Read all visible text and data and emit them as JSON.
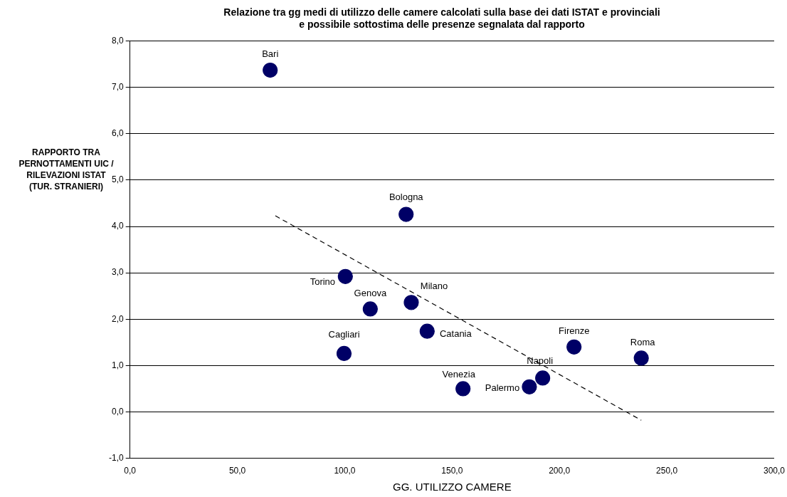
{
  "chart_data": {
    "type": "scatter",
    "title": "Relazione tra gg medi di utilizzo delle camere calcolati sulla base dei dati ISTAT e provinciali\ne possibile sottostima delle presenze segnalata dal rapporto",
    "xlabel": "GG. UTILIZZO CAMERE",
    "ylabel": "RAPPORTO TRA\nPERNOTTAMENTI UIC /\nRILEVAZIONI ISTAT\n(TUR. STRANIERI)",
    "xlim": [
      0,
      300
    ],
    "xticks": [
      {
        "value": 0,
        "label": "0,0"
      },
      {
        "value": 50,
        "label": "50,0"
      },
      {
        "value": 100,
        "label": "100,0"
      },
      {
        "value": 150,
        "label": "150,0"
      },
      {
        "value": 200,
        "label": "200,0"
      },
      {
        "value": 250,
        "label": "250,0"
      },
      {
        "value": 300,
        "label": "300,0"
      }
    ],
    "ylim": [
      -1,
      8
    ],
    "yticks": [
      {
        "value": -1,
        "label": "-1,0"
      },
      {
        "value": 0,
        "label": "0,0"
      },
      {
        "value": 1,
        "label": "1,0"
      },
      {
        "value": 2,
        "label": "2,0"
      },
      {
        "value": 3,
        "label": "3,0"
      },
      {
        "value": 4,
        "label": "4,0"
      },
      {
        "value": 5,
        "label": "5,0"
      },
      {
        "value": 6,
        "label": "6,0"
      },
      {
        "value": 7,
        "label": "7,0"
      },
      {
        "value": 8,
        "label": "8,0"
      }
    ],
    "grid": "y",
    "legend": false,
    "series": [
      {
        "color": "#000066",
        "marker": "circle",
        "x": [
          65.3,
          128.6,
          100.3,
          111.9,
          131,
          138.4,
          99.7,
          155.1,
          186,
          192.2,
          206.8,
          238.1
        ],
        "values": [
          7.37,
          4.26,
          2.92,
          2.22,
          2.36,
          1.74,
          1.26,
          0.5,
          0.54,
          0.73,
          1.4,
          1.16
        ]
      },
      {
        "type": "line",
        "color": "#000000",
        "line_style": "dashed",
        "marker": "none",
        "x": [
          67.7,
          238.1
        ],
        "values": [
          4.23,
          -0.18
        ]
      }
    ],
    "annotations": [
      {
        "text": "Bari",
        "x": 65.3,
        "y": 7.37
      },
      {
        "text": "Bologna",
        "x": 128.6,
        "y": 4.26
      },
      {
        "text": "Torino",
        "x": 100.3,
        "y": 2.92
      },
      {
        "text": "Genova",
        "x": 111.9,
        "y": 2.22
      },
      {
        "text": "Milano",
        "x": 131,
        "y": 2.36
      },
      {
        "text": "Catania",
        "x": 138.4,
        "y": 1.74
      },
      {
        "text": "Cagliari",
        "x": 99.7,
        "y": 1.26
      },
      {
        "text": "Venezia",
        "x": 155.1,
        "y": 0.5
      },
      {
        "text": "Palermo",
        "x": 186,
        "y": 0.54
      },
      {
        "text": "Napoli",
        "x": 192.2,
        "y": 0.73
      },
      {
        "text": "Firenze",
        "x": 206.8,
        "y": 1.4
      },
      {
        "text": "Roma",
        "x": 238.1,
        "y": 1.16
      }
    ]
  }
}
